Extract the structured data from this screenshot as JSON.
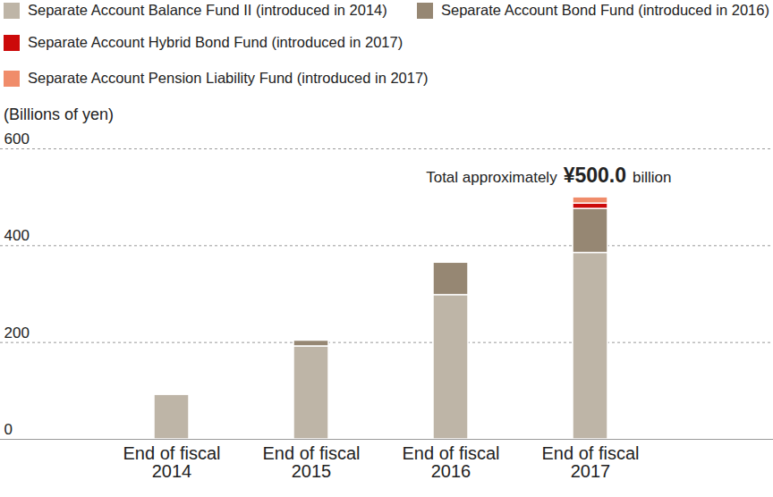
{
  "chart_data": {
    "type": "bar",
    "stacked": true,
    "y_label": "(Billions of yen)",
    "categories": [
      "End of fiscal\n2014",
      "End of fiscal\n2015",
      "End of fiscal\n2016",
      "End of fiscal\n2017"
    ],
    "series": [
      {
        "name": "Separate Account Balance Fund II (introduced in 2014)",
        "color": "#beb5a7",
        "values": [
          92,
          192,
          298,
          385
        ]
      },
      {
        "name": "Separate Account Bond Fund (introduced in 2016)",
        "color": "#968773",
        "values": [
          null,
          12,
          67,
          91
        ]
      },
      {
        "name": "Separate Account Hybrid Bond Fund (introduced in 2017)",
        "color": "#cc0a0a",
        "values": [
          null,
          null,
          null,
          11
        ]
      },
      {
        "name": "Separate Account Pension Liability Fund (introduced in 2017)",
        "color": "#f08c6a",
        "values": [
          null,
          null,
          null,
          13
        ]
      }
    ],
    "ylim": [
      0,
      600
    ],
    "yticks": [
      0,
      200,
      400,
      600
    ],
    "grid": true,
    "legend": "top-left",
    "annotation": {
      "text": [
        "Total approximately",
        "¥500.0",
        "billion"
      ],
      "category": "End of fiscal\n2017",
      "value": 500.0
    }
  }
}
